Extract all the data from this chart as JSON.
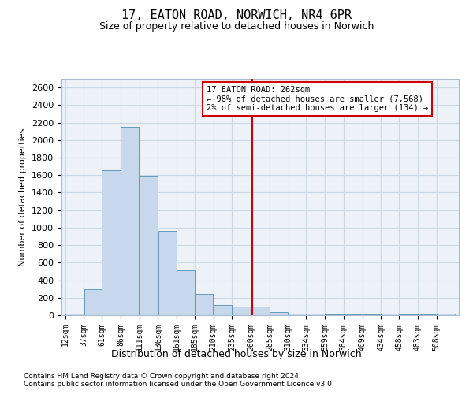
{
  "title": "17, EATON ROAD, NORWICH, NR4 6PR",
  "subtitle": "Size of property relative to detached houses in Norwich",
  "xlabel": "Distribution of detached houses by size in Norwich",
  "ylabel": "Number of detached properties",
  "bar_color": "#c8d8ec",
  "bar_edge_color": "#6699bb",
  "bin_labels": [
    "12sqm",
    "37sqm",
    "61sqm",
    "86sqm",
    "111sqm",
    "136sqm",
    "161sqm",
    "185sqm",
    "210sqm",
    "235sqm",
    "260sqm",
    "285sqm",
    "310sqm",
    "334sqm",
    "359sqm",
    "384sqm",
    "409sqm",
    "434sqm",
    "458sqm",
    "483sqm",
    "508sqm"
  ],
  "bar_values": [
    20,
    300,
    1660,
    2150,
    1590,
    960,
    510,
    245,
    120,
    100,
    100,
    40,
    20,
    15,
    10,
    5,
    5,
    20,
    5,
    5,
    20
  ],
  "bin_edges": [
    12,
    37,
    61,
    86,
    111,
    136,
    161,
    185,
    210,
    235,
    260,
    285,
    310,
    334,
    359,
    384,
    409,
    434,
    458,
    483,
    508,
    533
  ],
  "property_value": 262,
  "vline_color": "#cc0000",
  "annotation_text": "17 EATON ROAD: 262sqm\n← 98% of detached houses are smaller (7,568)\n2% of semi-detached houses are larger (134) →",
  "annotation_box_color": "#ffffff",
  "annotation_box_edge": "#cc0000",
  "ylim": [
    0,
    2700
  ],
  "yticks": [
    0,
    200,
    400,
    600,
    800,
    1000,
    1200,
    1400,
    1600,
    1800,
    2000,
    2200,
    2400,
    2600
  ],
  "grid_color": "#ccd8e4",
  "bg_color": "#edf2f8",
  "footnote1": "Contains HM Land Registry data © Crown copyright and database right 2024.",
  "footnote2": "Contains public sector information licensed under the Open Government Licence v3.0."
}
